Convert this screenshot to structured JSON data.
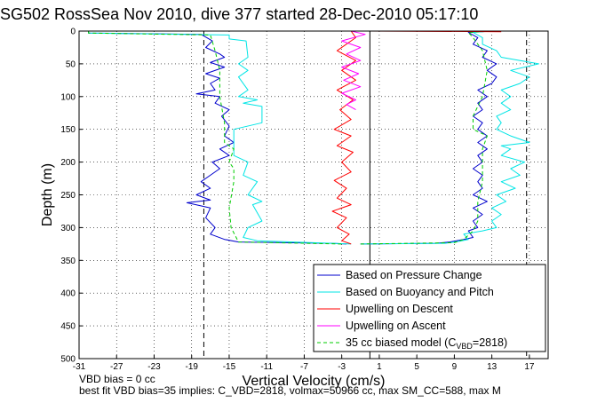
{
  "title": "SG502 RossSea Nov 2010, dive 377 started 28-Dec-2010 05:17:10",
  "footer": {
    "line1": "VBD bias = 0 cc",
    "line2": "best fit VBD bias=35 implies: C_VBD=2818, volmax=50966 cc, max SM_CC=588, max M"
  },
  "colors": {
    "pressure": "#0000cc",
    "buoyancy": "#00e5e5",
    "upwelling_descent": "#ff0000",
    "upwelling_ascent": "#ff00ff",
    "biased_model": "#00cc00"
  },
  "chart_data": {
    "type": "line",
    "xlabel": "Vertical Velocity (cm/s)",
    "ylabel": "Depth (m)",
    "xlim": [
      -31,
      19
    ],
    "ylim": [
      500,
      0
    ],
    "y_reversed": true,
    "x_ticks": [
      -31,
      -27,
      -23,
      -19,
      -15,
      -11,
      -7,
      -3,
      1,
      5,
      9,
      13,
      17
    ],
    "y_ticks": [
      0,
      50,
      100,
      150,
      200,
      250,
      300,
      350,
      400,
      450,
      500
    ],
    "grid": "dotted",
    "legend_position": "bottom-right",
    "vertical_lines": [
      {
        "x": -17.7,
        "style": "dashed"
      },
      {
        "x": 0,
        "style": "solid"
      },
      {
        "x": 16.7,
        "style": "dashed"
      }
    ],
    "legend": [
      {
        "key": "pressure",
        "label": "Based on Pressure Change",
        "dash": false
      },
      {
        "key": "buoyancy",
        "label": "Based on Buoyancy and Pitch",
        "dash": false
      },
      {
        "key": "upwelling_descent",
        "label": "Upwelling on Descent",
        "dash": false
      },
      {
        "key": "upwelling_ascent",
        "label": "Upwelling on Ascent",
        "dash": false
      },
      {
        "key": "biased_model",
        "label_pre": "35 cc biased model (C",
        "label_sub": "VBD",
        "label_post": "=2818)",
        "dash": true
      }
    ],
    "series": [
      {
        "key": "pressure",
        "segment": "descent",
        "points": [
          [
            -30,
            0
          ],
          [
            -30,
            3
          ],
          [
            -18,
            5
          ],
          [
            -16.8,
            15
          ],
          [
            -17.5,
            25
          ],
          [
            -16,
            35
          ],
          [
            -15.5,
            40
          ],
          [
            -17,
            48
          ],
          [
            -15.5,
            55
          ],
          [
            -17.5,
            65
          ],
          [
            -16,
            72
          ],
          [
            -17,
            80
          ],
          [
            -16.5,
            90
          ],
          [
            -18.5,
            96
          ],
          [
            -16,
            100
          ],
          [
            -16.5,
            110
          ],
          [
            -15,
            120
          ],
          [
            -15.8,
            130
          ],
          [
            -15,
            145
          ],
          [
            -15.5,
            160
          ],
          [
            -14.5,
            170
          ],
          [
            -16,
            180
          ],
          [
            -15,
            190
          ],
          [
            -16.8,
            200
          ],
          [
            -16,
            210
          ],
          [
            -17,
            220
          ],
          [
            -18,
            230
          ],
          [
            -17,
            240
          ],
          [
            -18.5,
            250
          ],
          [
            -17,
            258
          ],
          [
            -19.5,
            262
          ],
          [
            -17,
            270
          ],
          [
            -17.5,
            285
          ],
          [
            -16.5,
            300
          ],
          [
            -17,
            310
          ],
          [
            -15.5,
            318
          ],
          [
            -14,
            322
          ],
          [
            -4,
            324
          ],
          [
            -2.5,
            325
          ]
        ]
      },
      {
        "key": "buoyancy",
        "segment": "descent",
        "points": [
          [
            -30,
            0
          ],
          [
            -30,
            3
          ],
          [
            -15,
            6
          ],
          [
            -15,
            12
          ],
          [
            -13.2,
            15
          ],
          [
            -13,
            40
          ],
          [
            -14,
            50
          ],
          [
            -13,
            60
          ],
          [
            -14,
            70
          ],
          [
            -13,
            90
          ],
          [
            -14,
            100
          ],
          [
            -12,
            105
          ],
          [
            -13.5,
            110
          ],
          [
            -11.5,
            115
          ],
          [
            -11.5,
            140
          ],
          [
            -14.5,
            150
          ],
          [
            -14.5,
            190
          ],
          [
            -13,
            200
          ],
          [
            -13.5,
            220
          ],
          [
            -12,
            230
          ],
          [
            -13,
            250
          ],
          [
            -11.5,
            260
          ],
          [
            -12.5,
            265
          ],
          [
            -11.5,
            290
          ],
          [
            -13,
            300
          ],
          [
            -13.5,
            315
          ],
          [
            -12,
            320
          ],
          [
            -4,
            324
          ],
          [
            -2,
            325
          ]
        ]
      },
      {
        "key": "biased_model",
        "segment": "descent",
        "points": [
          [
            -30,
            0
          ],
          [
            -30,
            3
          ],
          [
            -17,
            6
          ],
          [
            -16.5,
            30
          ],
          [
            -16,
            60
          ],
          [
            -16,
            100
          ],
          [
            -15.5,
            140
          ],
          [
            -15.5,
            170
          ],
          [
            -14.5,
            180
          ],
          [
            -15,
            200
          ],
          [
            -14.5,
            210
          ],
          [
            -14.5,
            230
          ],
          [
            -15,
            270
          ],
          [
            -14.8,
            300
          ],
          [
            -14,
            322
          ],
          [
            -3,
            325
          ]
        ]
      },
      {
        "key": "upwelling_descent",
        "points": [
          [
            -2,
            0
          ],
          [
            -1.5,
            10
          ],
          [
            -3.5,
            30
          ],
          [
            -1.5,
            45
          ],
          [
            -3,
            60
          ],
          [
            -1.5,
            75
          ],
          [
            -3.5,
            90
          ],
          [
            -1.8,
            105
          ],
          [
            -3.2,
            120
          ],
          [
            -2,
            135
          ],
          [
            -3.8,
            150
          ],
          [
            -2,
            160
          ],
          [
            -3.5,
            175
          ],
          [
            -1.8,
            185
          ],
          [
            -3,
            200
          ],
          [
            -2,
            215
          ],
          [
            -3.8,
            228
          ],
          [
            -2.5,
            240
          ],
          [
            -3.5,
            255
          ],
          [
            -2,
            265
          ],
          [
            -4,
            275
          ],
          [
            -2.5,
            285
          ],
          [
            -3.5,
            300
          ],
          [
            -2.2,
            310
          ],
          [
            -3,
            320
          ],
          [
            -2,
            325
          ]
        ]
      },
      {
        "key": "upwelling_ascent",
        "points": [
          [
            -2,
            0
          ],
          [
            -0.5,
            5
          ],
          [
            -3,
            15
          ],
          [
            -1,
            25
          ],
          [
            -2.5,
            35
          ],
          [
            -1,
            45
          ],
          [
            -3,
            55
          ],
          [
            -1.2,
            65
          ],
          [
            -2.8,
            75
          ],
          [
            -1,
            85
          ],
          [
            -3,
            95
          ],
          [
            -1.5,
            105
          ],
          [
            -2.5,
            112
          ],
          [
            -1.5,
            120
          ]
        ]
      },
      {
        "key": "pressure",
        "segment": "ascent",
        "points": [
          [
            -1,
            325
          ],
          [
            7,
            324
          ],
          [
            8.5,
            322
          ],
          [
            10,
            318
          ],
          [
            11,
            315
          ],
          [
            10.5,
            305
          ],
          [
            11.5,
            300
          ],
          [
            11,
            290
          ],
          [
            12,
            280
          ],
          [
            11,
            270
          ],
          [
            12.5,
            260
          ],
          [
            11,
            250
          ],
          [
            12,
            240
          ],
          [
            11.5,
            230
          ],
          [
            12,
            220
          ],
          [
            11,
            210
          ],
          [
            12,
            200
          ],
          [
            11.5,
            190
          ],
          [
            12.5,
            180
          ],
          [
            11.5,
            170
          ],
          [
            12.5,
            160
          ],
          [
            11.5,
            150
          ],
          [
            12,
            140
          ],
          [
            11,
            130
          ],
          [
            12,
            120
          ],
          [
            11.5,
            110
          ],
          [
            12.5,
            100
          ],
          [
            11.5,
            90
          ],
          [
            13,
            80
          ],
          [
            13.5,
            70
          ],
          [
            12.5,
            60
          ],
          [
            13.5,
            50
          ],
          [
            12,
            40
          ],
          [
            12.5,
            30
          ],
          [
            11,
            20
          ],
          [
            11.5,
            10
          ],
          [
            10.5,
            2
          ],
          [
            13,
            0
          ]
        ]
      },
      {
        "key": "buoyancy",
        "segment": "ascent",
        "points": [
          [
            -1,
            325
          ],
          [
            8,
            324
          ],
          [
            9.5,
            321
          ],
          [
            10.5,
            318
          ],
          [
            10,
            310
          ],
          [
            12,
            305
          ],
          [
            13.5,
            300
          ],
          [
            13,
            290
          ],
          [
            14,
            280
          ],
          [
            13,
            270
          ],
          [
            14.5,
            260
          ],
          [
            13.5,
            250
          ],
          [
            15.5,
            240
          ],
          [
            14,
            230
          ],
          [
            16,
            220
          ],
          [
            15,
            210
          ],
          [
            16.5,
            200
          ],
          [
            14,
            190
          ],
          [
            15,
            180
          ],
          [
            14,
            175
          ],
          [
            17,
            170
          ],
          [
            15,
            160
          ],
          [
            13.5,
            150
          ],
          [
            14,
            140
          ],
          [
            13.5,
            130
          ],
          [
            15,
            120
          ],
          [
            14,
            110
          ],
          [
            15,
            100
          ],
          [
            14,
            90
          ],
          [
            16,
            80
          ],
          [
            17,
            70
          ],
          [
            15,
            60
          ],
          [
            18,
            50
          ],
          [
            14,
            40
          ],
          [
            13.5,
            30
          ],
          [
            12,
            20
          ],
          [
            12,
            10
          ],
          [
            11,
            2
          ],
          [
            13,
            0
          ]
        ]
      },
      {
        "key": "biased_model",
        "segment": "ascent",
        "points": [
          [
            -1,
            325
          ],
          [
            9,
            323
          ],
          [
            10,
            318
          ],
          [
            11,
            305
          ],
          [
            11.5,
            290
          ],
          [
            11.5,
            260
          ],
          [
            12,
            230
          ],
          [
            12,
            200
          ],
          [
            12,
            180
          ],
          [
            12.5,
            160
          ],
          [
            11,
            150
          ],
          [
            11,
            130
          ],
          [
            12,
            100
          ],
          [
            12.5,
            60
          ],
          [
            12,
            30
          ],
          [
            11,
            10
          ],
          [
            10.5,
            2
          ],
          [
            13,
            0
          ]
        ]
      },
      {
        "key": "upwelling_descent",
        "segment": "surface",
        "points": [
          [
            0,
            0
          ],
          [
            14,
            1
          ]
        ]
      }
    ]
  }
}
